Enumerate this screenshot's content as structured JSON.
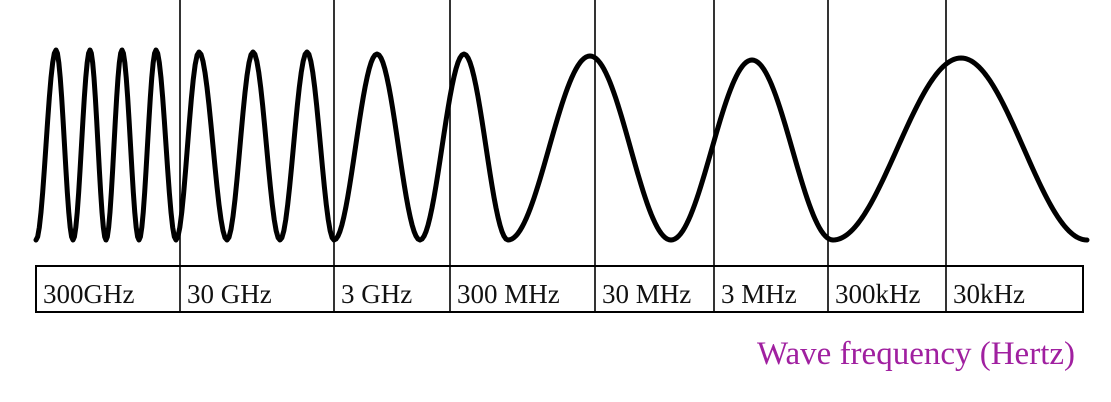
{
  "bands": [
    "300GHz",
    "30 GHz",
    "3 GHz",
    "300 MHz",
    "30 MHz",
    "3 MHz",
    "300kHz",
    "30kHz"
  ],
  "caption": "Wave frequency (Hertz)",
  "colors": {
    "wave": "#000000",
    "caption": "#a020a0",
    "lines": "#000000"
  }
}
